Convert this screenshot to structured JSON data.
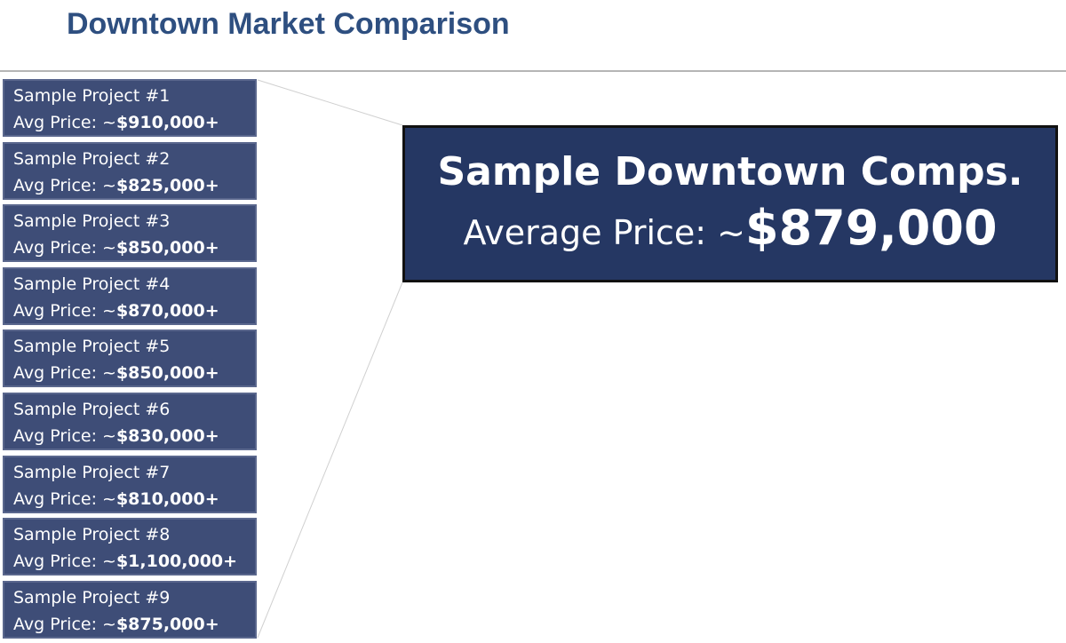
{
  "header": {
    "title": "Downtown Market Comparison"
  },
  "projects": [
    {
      "name": "Sample Project #1",
      "price_label": "Avg Price: ~",
      "price": "$910,000+"
    },
    {
      "name": "Sample Project #2",
      "price_label": "Avg Price: ~",
      "price": "$825,000+"
    },
    {
      "name": "Sample Project #3",
      "price_label": "Avg Price: ~",
      "price": "$850,000+"
    },
    {
      "name": "Sample Project #4",
      "price_label": "Avg Price: ~",
      "price": "$870,000+"
    },
    {
      "name": "Sample Project #5",
      "price_label": "Avg Price: ~",
      "price": "$850,000+"
    },
    {
      "name": "Sample Project #6",
      "price_label": "Avg Price: ~",
      "price": "$830,000+"
    },
    {
      "name": "Sample Project #7",
      "price_label": "Avg Price: ~",
      "price": "$810,000+"
    },
    {
      "name": "Sample Project #8",
      "price_label": "Avg Price: ~",
      "price": "$1,100,000+"
    },
    {
      "name": "Sample Project #9",
      "price_label": "Avg Price: ~",
      "price": "$875,000+"
    }
  ],
  "summary": {
    "title": "Sample Downtown Comps.",
    "price_label": "Average Price: ~",
    "price": "$879,000"
  }
}
